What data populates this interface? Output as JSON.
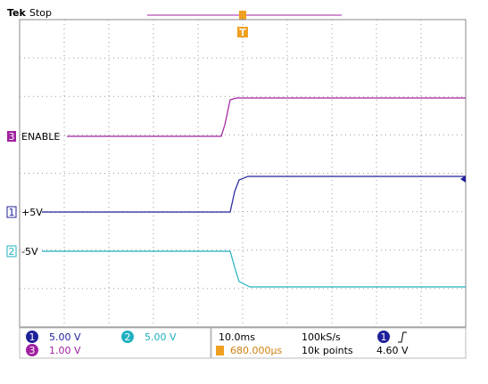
{
  "header": {
    "brand": "Tek",
    "status": "Stop",
    "trigger_marker": "T"
  },
  "channels": [
    {
      "number": "3",
      "label": "ENABLE"
    },
    {
      "number": "1",
      "label": "+5V"
    },
    {
      "number": "2",
      "label": "-5V"
    }
  ],
  "status_panel": {
    "ch1_number": "1",
    "ch1_scale": "5.00 V",
    "ch2_number": "2",
    "ch2_scale": "5.00 V",
    "ch3_number": "3",
    "ch3_scale": "1.00 V",
    "timebase": "10.0ms",
    "sample_rate": "100kS/s",
    "trigger_position": "680.000µs",
    "record_length": "10k points",
    "trigger_source": "1",
    "trigger_level": "4.60 V"
  }
}
